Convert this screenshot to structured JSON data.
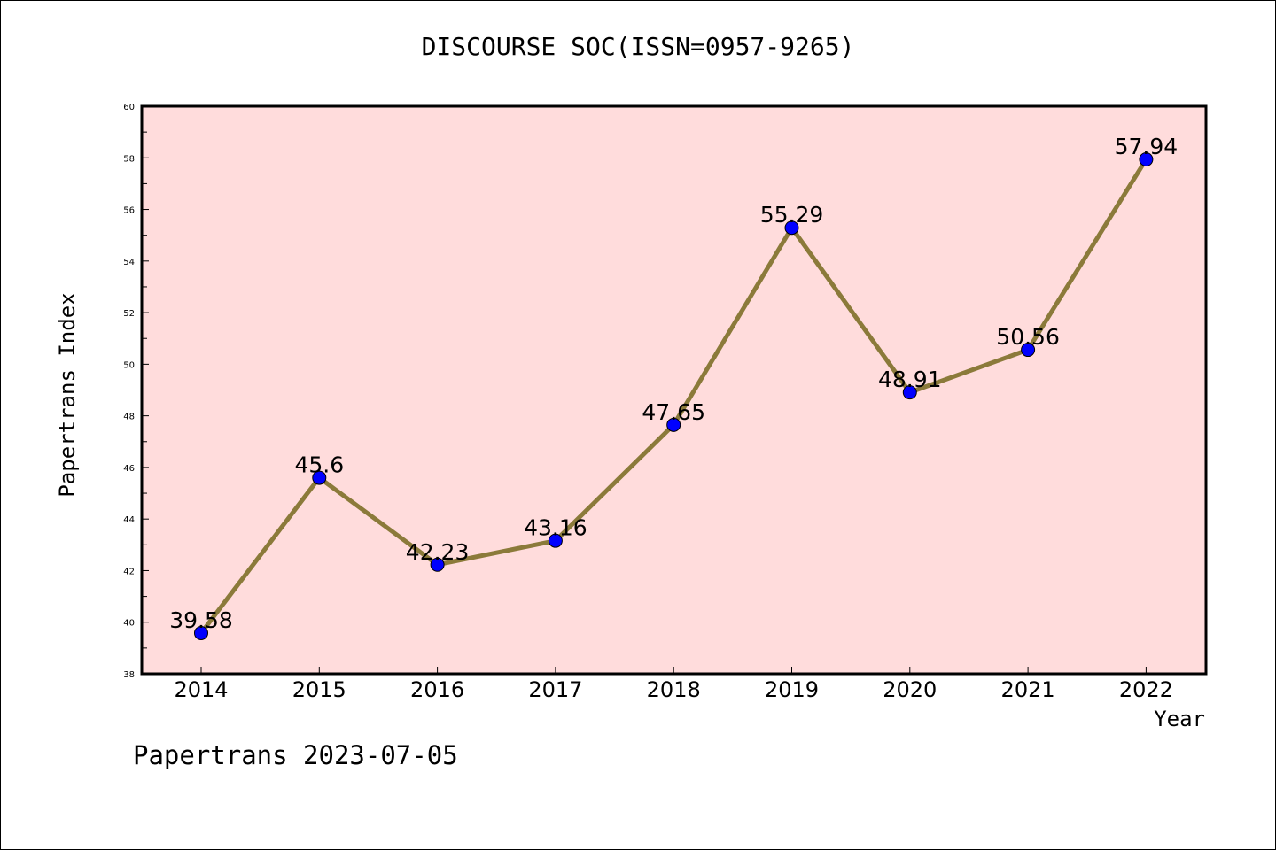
{
  "chart_data": {
    "type": "line",
    "title": "DISCOURSE SOC(ISSN=0957-9265)",
    "xlabel": "Year",
    "ylabel": "Papertrans Index",
    "x": [
      "2014",
      "2015",
      "2016",
      "2017",
      "2018",
      "2019",
      "2020",
      "2021",
      "2022"
    ],
    "series": [
      {
        "values": [
          39.58,
          45.6,
          42.23,
          43.16,
          47.65,
          55.29,
          48.91,
          50.56,
          57.94
        ],
        "labels": [
          "39.58",
          "45.6",
          "42.23",
          "43.16",
          "47.65",
          "55.29",
          "48.91",
          "50.56",
          "57.94"
        ]
      }
    ],
    "ylim": [
      38,
      60
    ],
    "yticks": [
      "38",
      "40",
      "42",
      "44",
      "46",
      "48",
      "50",
      "52",
      "54",
      "56",
      "58",
      "60"
    ],
    "grid": false,
    "colors": {
      "line": "#8b7a3a",
      "marker": "#0000ff",
      "plot_bg": "#ffdcdc"
    }
  },
  "footer": "Papertrans 2023-07-05"
}
